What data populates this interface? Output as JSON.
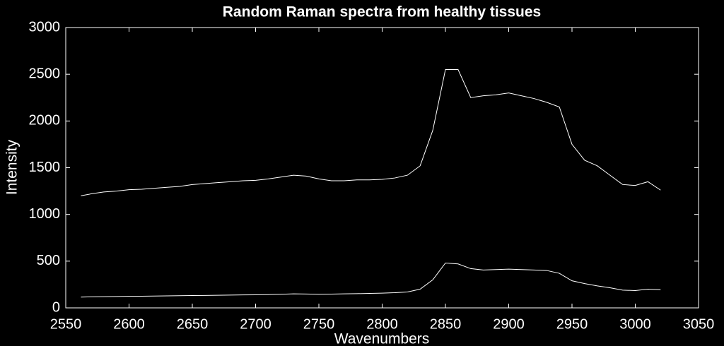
{
  "chart_data": {
    "type": "line",
    "title": "Random Raman spectra from healthy tissues",
    "xlabel": "Wavenumbers",
    "ylabel": "Intensity",
    "x": [
      2562,
      2570,
      2580,
      2590,
      2600,
      2610,
      2620,
      2630,
      2640,
      2650,
      2660,
      2670,
      2680,
      2690,
      2700,
      2710,
      2720,
      2730,
      2740,
      2750,
      2760,
      2770,
      2780,
      2790,
      2800,
      2810,
      2820,
      2830,
      2840,
      2850,
      2860,
      2870,
      2880,
      2890,
      2900,
      2910,
      2920,
      2930,
      2940,
      2950,
      2960,
      2970,
      2980,
      2990,
      3000,
      3010,
      3020
    ],
    "series": [
      {
        "color": "#ffffff",
        "values": [
          1200,
          1220,
          1240,
          1250,
          1265,
          1270,
          1280,
          1290,
          1300,
          1320,
          1330,
          1340,
          1350,
          1360,
          1365,
          1380,
          1400,
          1420,
          1410,
          1380,
          1360,
          1360,
          1370,
          1370,
          1375,
          1390,
          1420,
          1520,
          1900,
          2550,
          2550,
          2250,
          2270,
          2280,
          2300,
          2270,
          2240,
          2200,
          2150,
          1750,
          1580,
          1520,
          1420,
          1320,
          1310,
          1350,
          1260
        ]
      },
      {
        "color": "#ffffff",
        "values": [
          115,
          118,
          120,
          122,
          125,
          125,
          127,
          128,
          130,
          132,
          133,
          135,
          137,
          139,
          140,
          142,
          145,
          150,
          148,
          145,
          147,
          150,
          152,
          155,
          158,
          162,
          170,
          200,
          300,
          480,
          470,
          420,
          405,
          410,
          415,
          410,
          405,
          400,
          370,
          290,
          260,
          235,
          215,
          190,
          185,
          200,
          195
        ]
      }
    ],
    "xlim": [
      2550,
      3050
    ],
    "xticks": [
      2550,
      2600,
      2650,
      2700,
      2750,
      2800,
      2850,
      2900,
      2950,
      3000,
      3050
    ],
    "ylim": [
      0,
      3000
    ],
    "yticks": [
      0,
      500,
      1000,
      1500,
      2000,
      2500,
      3000
    ],
    "background": "#000000",
    "axis_color": "#ffffff"
  }
}
